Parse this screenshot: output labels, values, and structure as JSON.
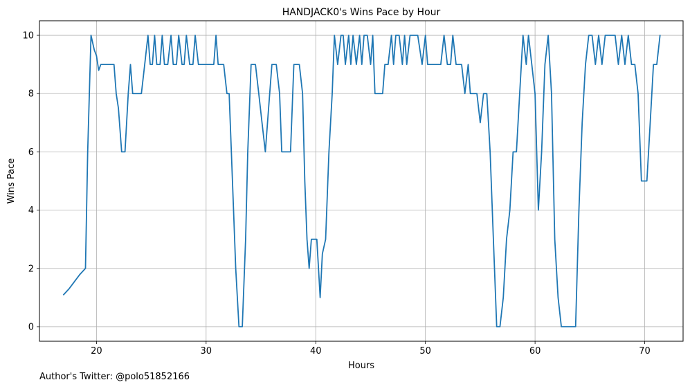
{
  "chart_data": {
    "type": "line",
    "title": "HANDJACK0's Wins Pace by Hour",
    "xlabel": "Hours",
    "ylabel": "Wins Pace",
    "xlim": [
      14.8,
      73.5
    ],
    "ylim": [
      -0.5,
      10.5
    ],
    "xticks": [
      20,
      30,
      40,
      50,
      60,
      70
    ],
    "yticks": [
      0,
      2,
      4,
      6,
      8,
      10
    ],
    "grid": true,
    "series": [
      {
        "color": "#1f77b4",
        "x": [
          17.0,
          17.5,
          18.0,
          18.5,
          19.0,
          19.2,
          19.5,
          19.8,
          20.0,
          20.2,
          20.4,
          20.7,
          21.0,
          21.3,
          21.6,
          21.8,
          22.0,
          22.3,
          22.6,
          22.9,
          23.1,
          23.3,
          23.5,
          23.8,
          24.1,
          24.4,
          24.7,
          24.9,
          25.1,
          25.3,
          25.5,
          25.8,
          26.0,
          26.2,
          26.5,
          26.8,
          27.0,
          27.3,
          27.5,
          27.8,
          28.0,
          28.2,
          28.5,
          28.8,
          29.0,
          29.3,
          29.5,
          29.8,
          30.0,
          30.4,
          30.7,
          30.9,
          31.1,
          31.3,
          31.6,
          31.9,
          32.1,
          32.3,
          32.7,
          33.0,
          33.3,
          33.6,
          33.8,
          34.1,
          34.5,
          34.8,
          35.1,
          35.4,
          35.7,
          36.0,
          36.4,
          36.7,
          36.9,
          37.1,
          37.4,
          37.7,
          38.0,
          38.3,
          38.5,
          38.8,
          39.0,
          39.2,
          39.4,
          39.6,
          39.8,
          40.1,
          40.4,
          40.6,
          40.9,
          41.2,
          41.5,
          41.7,
          42.0,
          42.3,
          42.5,
          42.7,
          43.0,
          43.2,
          43.4,
          43.7,
          44.0,
          44.2,
          44.4,
          44.7,
          45.0,
          45.2,
          45.4,
          45.6,
          45.8,
          46.1,
          46.3,
          46.6,
          46.9,
          47.1,
          47.3,
          47.6,
          47.9,
          48.1,
          48.3,
          48.6,
          48.9,
          49.1,
          49.3,
          49.7,
          50.0,
          50.2,
          50.5,
          50.8,
          51.1,
          51.4,
          51.7,
          52.0,
          52.3,
          52.5,
          52.8,
          53.0,
          53.3,
          53.6,
          53.9,
          54.1,
          54.4,
          54.7,
          55.0,
          55.3,
          55.6,
          55.9,
          56.2,
          56.5,
          56.8,
          57.1,
          57.4,
          57.7,
          58.0,
          58.3,
          58.6,
          58.9,
          59.2,
          59.4,
          59.7,
          60.0,
          60.3,
          60.6,
          60.9,
          61.2,
          61.5,
          61.8,
          62.1,
          62.4,
          62.7,
          63.0,
          63.3,
          63.7,
          64.0,
          64.3,
          64.6,
          64.9,
          65.2,
          65.5,
          65.8,
          66.1,
          66.4,
          66.7,
          67.0,
          67.3,
          67.6,
          67.9,
          68.2,
          68.5,
          68.8,
          69.1,
          69.4,
          69.7,
          70.0,
          70.2,
          70.5,
          70.8,
          71.1,
          71.4
        ],
        "y": [
          1.1,
          1.3,
          1.55,
          1.8,
          2.0,
          6.0,
          10.0,
          9.5,
          9.3,
          8.8,
          9.0,
          9.0,
          9.0,
          9.0,
          9.0,
          8.0,
          7.5,
          6.0,
          6.0,
          8.0,
          9.0,
          8.0,
          8.0,
          8.0,
          8.0,
          9.0,
          10.0,
          9.0,
          9.0,
          10.0,
          9.0,
          9.0,
          10.0,
          9.0,
          9.0,
          10.0,
          9.0,
          9.0,
          10.0,
          9.0,
          9.0,
          10.0,
          9.0,
          9.0,
          10.0,
          9.0,
          9.0,
          9.0,
          9.0,
          9.0,
          9.0,
          10.0,
          9.0,
          9.0,
          9.0,
          8.0,
          8.0,
          6.0,
          2.0,
          0.0,
          0.0,
          3.0,
          6.0,
          9.0,
          9.0,
          8.0,
          7.0,
          6.0,
          7.5,
          9.0,
          9.0,
          8.0,
          6.0,
          6.0,
          6.0,
          6.0,
          9.0,
          9.0,
          9.0,
          8.0,
          5.0,
          3.0,
          2.0,
          3.0,
          3.0,
          3.0,
          1.0,
          2.5,
          3.0,
          6.0,
          8.0,
          10.0,
          9.0,
          10.0,
          10.0,
          9.0,
          10.0,
          9.0,
          10.0,
          9.0,
          10.0,
          9.0,
          10.0,
          10.0,
          9.0,
          10.0,
          8.0,
          8.0,
          8.0,
          8.0,
          9.0,
          9.0,
          10.0,
          9.0,
          10.0,
          10.0,
          9.0,
          10.0,
          9.0,
          10.0,
          10.0,
          10.0,
          10.0,
          9.0,
          10.0,
          9.0,
          9.0,
          9.0,
          9.0,
          9.0,
          10.0,
          9.0,
          9.0,
          10.0,
          9.0,
          9.0,
          9.0,
          8.0,
          9.0,
          8.0,
          8.0,
          8.0,
          7.0,
          8.0,
          8.0,
          6.0,
          3.0,
          0.0,
          0.0,
          1.0,
          3.0,
          4.0,
          6.0,
          6.0,
          8.0,
          10.0,
          9.0,
          10.0,
          9.0,
          8.0,
          4.0,
          6.0,
          9.0,
          10.0,
          8.0,
          3.0,
          1.0,
          0.0,
          0.0,
          0.0,
          0.0,
          0.0,
          4.0,
          7.0,
          9.0,
          10.0,
          10.0,
          9.0,
          10.0,
          9.0,
          10.0,
          10.0,
          10.0,
          10.0,
          9.0,
          10.0,
          9.0,
          10.0,
          9.0,
          9.0,
          8.0,
          5.0,
          5.0,
          5.0,
          7.0,
          9.0,
          9.0,
          10.0
        ]
      }
    ]
  },
  "footer": {
    "text": "Author's Twitter: @polo51852166"
  }
}
